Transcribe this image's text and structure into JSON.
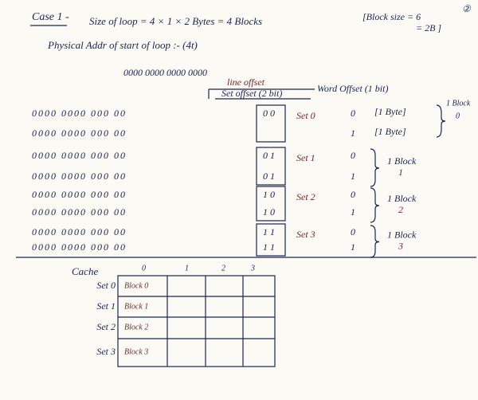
{
  "header": {
    "case": "Case 1 -",
    "loop_size": "Size of loop = 4 × 1 × 2 Bytes = 4 Blocks",
    "block_size": "[Block size = 6",
    "block_size_2": "= 2B ]",
    "page": "②"
  },
  "address": {
    "label": "Physical Addr of start of loop :- (4t)",
    "bits": "0000  0000  0000  0000",
    "line_offset": "line offset",
    "set_offset": "Set offset (2 bit)",
    "word_offset": "Word Offset (1 bit)"
  },
  "rows": [
    {
      "bits": "0000   0000   000   00",
      "set": "0 0",
      "word": "0"
    },
    {
      "bits": "0000   0000   000   00",
      "word": "1"
    },
    {
      "bits": "0000   0000   000   00",
      "set": "0 1",
      "word": "0"
    },
    {
      "bits": "0000   0000   000   00",
      "set": "0 1",
      "word": "1"
    },
    {
      "bits": "0000   0000   000   00",
      "set": "1 0",
      "word": "0"
    },
    {
      "bits": "0000   0000   000   00",
      "set": "1 0",
      "word": "1"
    },
    {
      "bits": "0000   0000   000   00",
      "set": "1 1",
      "word": "0"
    },
    {
      "bits": "0000   0000   000   00",
      "set": "1 1",
      "word": "1"
    }
  ],
  "sets": [
    {
      "label": "Set 0",
      "block": "1 Block",
      "num": "0"
    },
    {
      "label": "Set 1",
      "block": "1 Block",
      "num": "1"
    },
    {
      "label": "Set 2",
      "block": "1 Block",
      "num": "2"
    },
    {
      "label": "Set 3",
      "block": "1 Block",
      "num": "3"
    }
  ],
  "bytes": [
    "[1 Byte]",
    "[1 Byte]"
  ],
  "cache": {
    "title": "Cache",
    "columns": [
      "0",
      "1",
      "2",
      "3"
    ],
    "rows": [
      {
        "set": "Set 0",
        "block": "Block 0"
      },
      {
        "set": "Set 1",
        "block": "Block 1"
      },
      {
        "set": "Set 2",
        "block": "Block 2"
      },
      {
        "set": "Set 3",
        "block": "Block 3"
      }
    ]
  }
}
